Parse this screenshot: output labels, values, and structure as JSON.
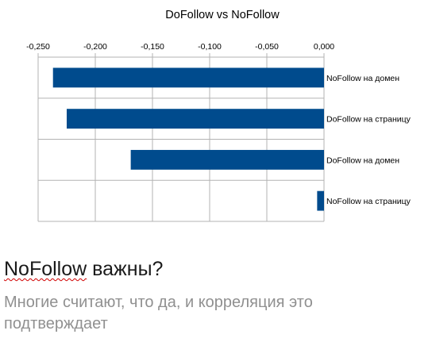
{
  "chart_data": {
    "type": "bar",
    "orientation": "horizontal",
    "title": "DoFollow vs NoFollow",
    "xlabel": "",
    "ylabel": "",
    "xlim": [
      -0.25,
      0.0
    ],
    "x_ticks": [
      -0.25,
      -0.2,
      -0.15,
      -0.1,
      -0.05,
      0.0
    ],
    "x_tick_labels": [
      "-0,250",
      "-0,200",
      "-0,150",
      "-0,100",
      "-0,050",
      "0,000"
    ],
    "x_axis_position": "top",
    "grid": true,
    "legend": "none",
    "categories": [
      "NoFollow на домен",
      "DoFollow на страницу",
      "DoFollow на домен",
      "NoFollow на страницу"
    ],
    "values": [
      -0.237,
      -0.225,
      -0.169,
      -0.006
    ],
    "bar_color": "#004b8d"
  },
  "slide": {
    "heading_word": "NoFollow",
    "heading_rest": " важны?",
    "subtext": "Многие считают, что да, и корреляция это подтверждает"
  },
  "colors": {
    "bar": "#004b8d",
    "grid": "#b3b3b3",
    "subtext": "#909090"
  }
}
